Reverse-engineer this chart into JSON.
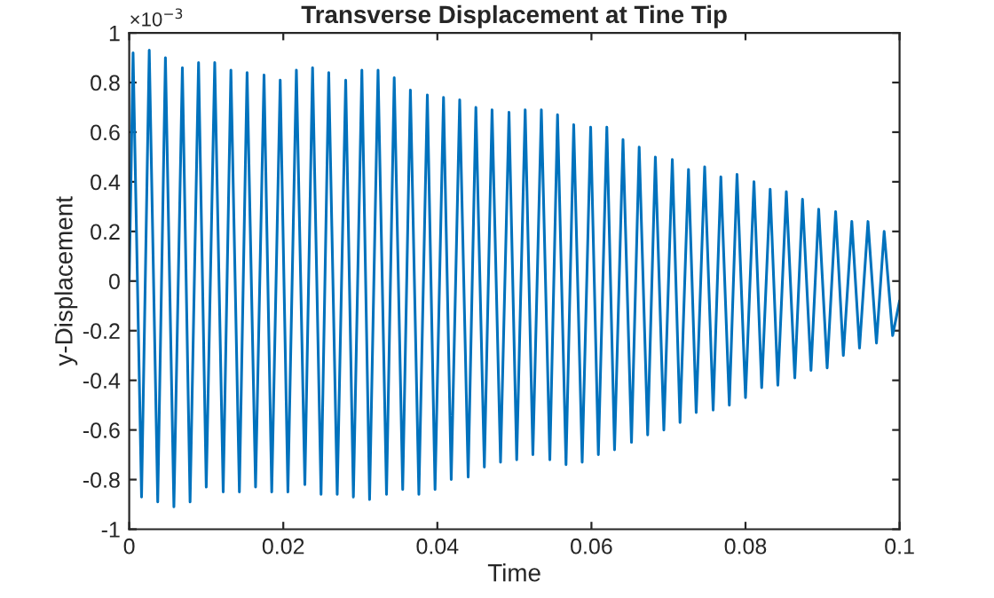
{
  "chart_data": {
    "type": "line",
    "title": "Transverse Displacement at Tine Tip",
    "xlabel": "Time",
    "ylabel": "y-Displacement",
    "annotations": [
      "×10$^{−3}$"
    ],
    "x": [
      0,
      0.0005,
      0.0016,
      0.0026,
      0.0037,
      0.0047,
      0.0058,
      0.0069,
      0.0079,
      0.009,
      0.01,
      0.0111,
      0.0122,
      0.0132,
      0.0143,
      0.0153,
      0.0164,
      0.0175,
      0.0185,
      0.0196,
      0.0206,
      0.0217,
      0.0228,
      0.0238,
      0.0249,
      0.0259,
      0.027,
      0.0281,
      0.0291,
      0.0302,
      0.0312,
      0.0323,
      0.0334,
      0.0344,
      0.0355,
      0.0365,
      0.0376,
      0.0387,
      0.0397,
      0.0408,
      0.0418,
      0.0429,
      0.044,
      0.045,
      0.0461,
      0.0471,
      0.0482,
      0.0493,
      0.0503,
      0.0514,
      0.0524,
      0.0535,
      0.0546,
      0.0556,
      0.0567,
      0.0577,
      0.0588,
      0.0599,
      0.0609,
      0.062,
      0.063,
      0.0641,
      0.0652,
      0.0662,
      0.0673,
      0.0683,
      0.0694,
      0.0705,
      0.0715,
      0.0726,
      0.0736,
      0.0747,
      0.0758,
      0.0768,
      0.0779,
      0.0789,
      0.08,
      0.0811,
      0.0821,
      0.0832,
      0.0842,
      0.0853,
      0.0864,
      0.0874,
      0.0885,
      0.0895,
      0.0906,
      0.0917,
      0.0927,
      0.0938,
      0.0948,
      0.0959,
      0.097,
      0.098,
      0.0991,
      0.1
    ],
    "series": [
      {
        "color": "#0072bd",
        "values": [
          0,
          0.92,
          -0.87,
          0.93,
          -0.89,
          0.9,
          -0.91,
          0.86,
          -0.89,
          0.88,
          -0.83,
          0.88,
          -0.85,
          0.85,
          -0.85,
          0.84,
          -0.83,
          0.83,
          -0.85,
          0.81,
          -0.85,
          0.85,
          -0.82,
          0.86,
          -0.86,
          0.84,
          -0.86,
          0.81,
          -0.87,
          0.85,
          -0.88,
          0.85,
          -0.86,
          0.82,
          -0.84,
          0.77,
          -0.86,
          0.75,
          -0.84,
          0.74,
          -0.8,
          0.73,
          -0.79,
          0.7,
          -0.75,
          0.69,
          -0.73,
          0.68,
          -0.72,
          0.69,
          -0.7,
          0.69,
          -0.72,
          0.67,
          -0.74,
          0.63,
          -0.73,
          0.62,
          -0.7,
          0.62,
          -0.68,
          0.57,
          -0.65,
          0.54,
          -0.62,
          0.5,
          -0.6,
          0.49,
          -0.57,
          0.45,
          -0.53,
          0.46,
          -0.52,
          0.42,
          -0.5,
          0.43,
          -0.47,
          0.4,
          -0.43,
          0.37,
          -0.42,
          0.36,
          -0.39,
          0.33,
          -0.36,
          0.29,
          -0.35,
          0.28,
          -0.3,
          0.24,
          -0.27,
          0.24,
          -0.25,
          0.2,
          -0.22,
          -0.08
        ]
      }
    ],
    "xlim": [
      0,
      0.1
    ],
    "xticks": [
      0,
      0.02,
      0.04,
      0.06,
      0.08,
      0.1
    ],
    "ylim": [
      -1,
      1
    ],
    "yticks": [
      -1,
      -0.8,
      -0.6,
      -0.4,
      -0.2,
      0,
      0.2,
      0.4,
      0.6,
      0.8,
      1
    ],
    "grid": false,
    "legend": false
  }
}
